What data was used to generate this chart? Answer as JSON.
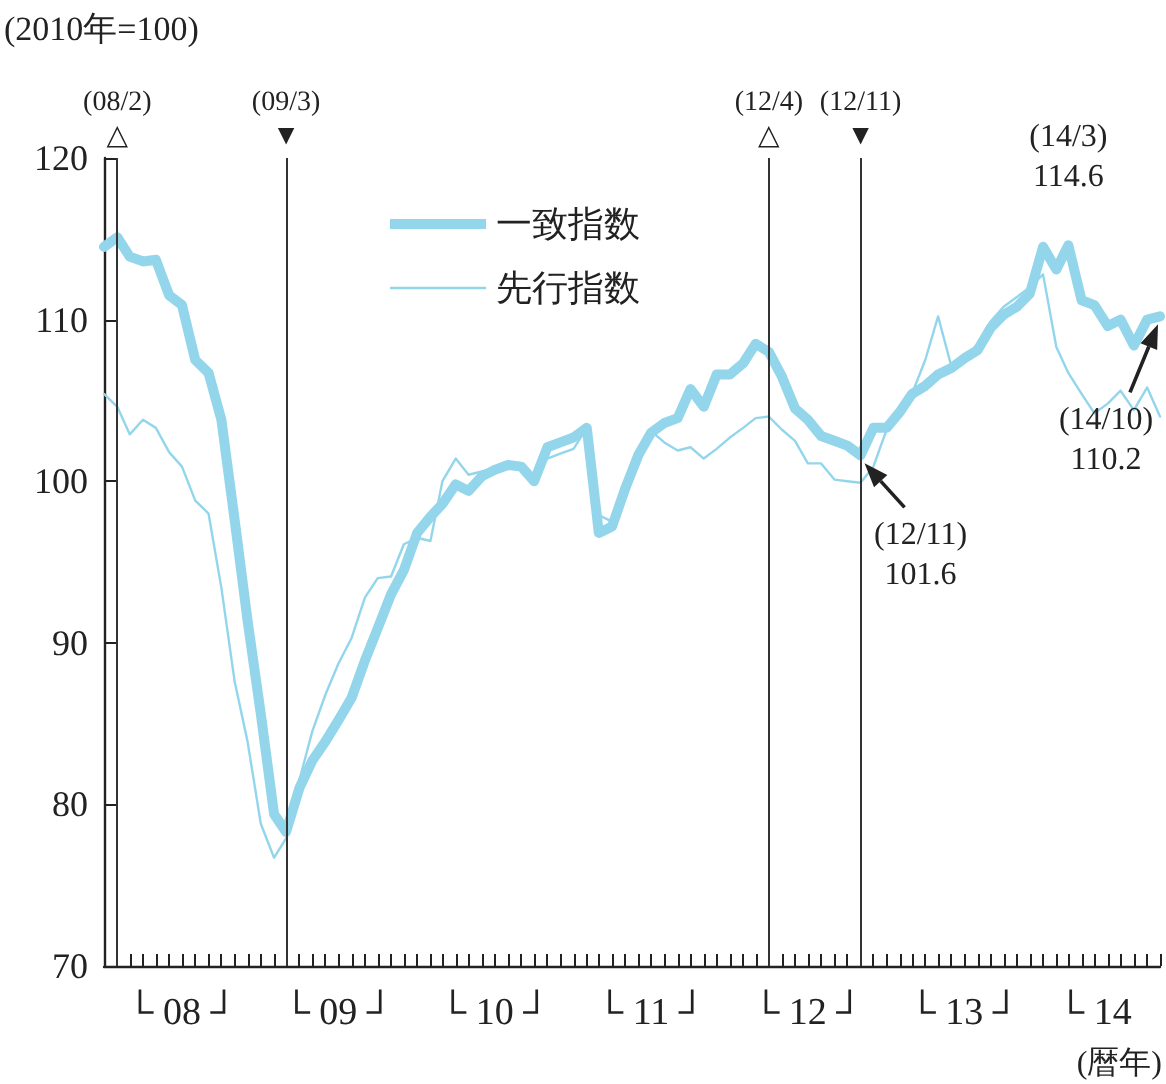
{
  "chart_data": {
    "type": "line",
    "ylabel": "(2010年=100)",
    "xlabel": "(暦年)",
    "x": [
      "2008-01",
      "2008-02",
      "2008-03",
      "2008-04",
      "2008-05",
      "2008-06",
      "2008-07",
      "2008-08",
      "2008-09",
      "2008-10",
      "2008-11",
      "2008-12",
      "2009-01",
      "2009-02",
      "2009-03",
      "2009-04",
      "2009-05",
      "2009-06",
      "2009-07",
      "2009-08",
      "2009-09",
      "2009-10",
      "2009-11",
      "2009-12",
      "2010-01",
      "2010-02",
      "2010-03",
      "2010-04",
      "2010-05",
      "2010-06",
      "2010-07",
      "2010-08",
      "2010-09",
      "2010-10",
      "2010-11",
      "2010-12",
      "2011-01",
      "2011-02",
      "2011-03",
      "2011-04",
      "2011-05",
      "2011-06",
      "2011-07",
      "2011-08",
      "2011-09",
      "2011-10",
      "2011-11",
      "2011-12",
      "2012-01",
      "2012-02",
      "2012-03",
      "2012-04",
      "2012-05",
      "2012-06",
      "2012-07",
      "2012-08",
      "2012-09",
      "2012-10",
      "2012-11",
      "2012-12",
      "2013-01",
      "2013-02",
      "2013-03",
      "2013-04",
      "2013-05",
      "2013-06",
      "2013-07",
      "2013-08",
      "2013-09",
      "2013-10",
      "2013-11",
      "2013-12",
      "2014-01",
      "2014-02",
      "2014-03",
      "2014-04",
      "2014-05",
      "2014-06",
      "2014-07",
      "2014-08",
      "2014-09",
      "2014-10"
    ],
    "series": [
      {
        "name": "一致指数",
        "color": "#93d6ec",
        "values": [
          114.5,
          115.1,
          113.9,
          113.6,
          113.7,
          111.5,
          110.9,
          107.5,
          106.7,
          103.8,
          97.6,
          91.4,
          85.6,
          79.4,
          78.3,
          81.0,
          82.7,
          83.9,
          85.2,
          86.6,
          88.9,
          90.9,
          93.0,
          94.5,
          96.8,
          97.8,
          98.6,
          99.8,
          99.4,
          100.3,
          100.7,
          101.0,
          100.9,
          100.0,
          102.1,
          102.4,
          102.7,
          103.3,
          96.8,
          97.2,
          99.5,
          101.6,
          103.0,
          103.6,
          103.9,
          105.7,
          104.6,
          106.6,
          106.6,
          107.3,
          108.5,
          108.0,
          106.5,
          104.5,
          103.8,
          102.8,
          102.5,
          102.2,
          101.6,
          103.3,
          103.3,
          104.3,
          105.4,
          105.9,
          106.6,
          107.0,
          107.6,
          108.1,
          109.5,
          110.3,
          110.8,
          111.6,
          114.5,
          113.1,
          114.6,
          111.2,
          110.9,
          109.6,
          110.0,
          108.4,
          110.0,
          110.2
        ]
      },
      {
        "name": "先行指数",
        "color": "#93d6ec",
        "values": [
          105.4,
          104.6,
          102.9,
          103.8,
          103.3,
          101.8,
          100.9,
          98.8,
          98.0,
          93.4,
          87.6,
          83.9,
          78.8,
          76.7,
          77.9,
          81.5,
          84.5,
          86.8,
          88.7,
          90.3,
          92.8,
          94.0,
          94.1,
          96.1,
          96.5,
          96.3,
          100.0,
          101.4,
          100.4,
          100.6,
          100.8,
          101.0,
          100.7,
          100.4,
          101.4,
          101.7,
          102.0,
          103.3,
          97.9,
          97.5,
          99.3,
          101.0,
          103.1,
          102.4,
          101.9,
          102.1,
          101.4,
          102.0,
          102.7,
          103.3,
          103.9,
          104.0,
          103.2,
          102.5,
          101.1,
          101.1,
          100.1,
          100.0,
          99.9,
          100.9,
          103.2,
          104.3,
          105.4,
          107.5,
          110.2,
          107.1,
          107.5,
          108.5,
          109.9,
          110.8,
          111.4,
          112.0,
          112.8,
          108.3,
          106.7,
          105.4,
          104.2,
          104.8,
          105.6,
          104.4,
          105.8,
          104.0
        ]
      }
    ],
    "xlim": [
      "2008-01",
      "2014-10"
    ],
    "xticks": [
      {
        "value": "2008-01",
        "label": null
      },
      {
        "value": "2008-02",
        "label": null
      },
      {
        "value": "2008-03",
        "label": null
      },
      {
        "value": "2008-04",
        "label": null
      },
      {
        "value": "2008-05",
        "label": null
      },
      {
        "value": "2008-06",
        "label": null
      },
      {
        "value": "2008-07",
        "label": "└ 08 ┘"
      },
      {
        "value": "2008-08",
        "label": null
      },
      {
        "value": "2008-09",
        "label": null
      },
      {
        "value": "2008-10",
        "label": null
      },
      {
        "value": "2008-11",
        "label": null
      },
      {
        "value": "2008-12",
        "label": null
      },
      {
        "value": "2009-01",
        "label": null
      },
      {
        "value": "2009-02",
        "label": null
      },
      {
        "value": "2009-03",
        "label": null
      },
      {
        "value": "2009-04",
        "label": null
      },
      {
        "value": "2009-05",
        "label": null
      },
      {
        "value": "2009-06",
        "label": null
      },
      {
        "value": "2009-07",
        "label": "└ 09 ┘"
      },
      {
        "value": "2009-08",
        "label": null
      },
      {
        "value": "2009-09",
        "label": null
      },
      {
        "value": "2009-10",
        "label": null
      },
      {
        "value": "2009-11",
        "label": null
      },
      {
        "value": "2009-12",
        "label": null
      },
      {
        "value": "2010-01",
        "label": null
      },
      {
        "value": "2010-02",
        "label": null
      },
      {
        "value": "2010-03",
        "label": null
      },
      {
        "value": "2010-04",
        "label": null
      },
      {
        "value": "2010-05",
        "label": null
      },
      {
        "value": "2010-06",
        "label": null
      },
      {
        "value": "2010-07",
        "label": "└ 10 ┘"
      },
      {
        "value": "2010-08",
        "label": null
      },
      {
        "value": "2010-09",
        "label": null
      },
      {
        "value": "2010-10",
        "label": null
      },
      {
        "value": "2010-11",
        "label": null
      },
      {
        "value": "2010-12",
        "label": null
      },
      {
        "value": "2011-01",
        "label": null
      },
      {
        "value": "2011-02",
        "label": null
      },
      {
        "value": "2011-03",
        "label": null
      },
      {
        "value": "2011-04",
        "label": null
      },
      {
        "value": "2011-05",
        "label": null
      },
      {
        "value": "2011-06",
        "label": null
      },
      {
        "value": "2011-07",
        "label": "└ 11 ┘"
      },
      {
        "value": "2011-08",
        "label": null
      },
      {
        "value": "2011-09",
        "label": null
      },
      {
        "value": "2011-10",
        "label": null
      },
      {
        "value": "2011-11",
        "label": null
      },
      {
        "value": "2011-12",
        "label": null
      },
      {
        "value": "2012-01",
        "label": null
      },
      {
        "value": "2012-02",
        "label": null
      },
      {
        "value": "2012-03",
        "label": null
      },
      {
        "value": "2012-04",
        "label": null
      },
      {
        "value": "2012-05",
        "label": null
      },
      {
        "value": "2012-06",
        "label": null
      },
      {
        "value": "2012-07",
        "label": "└ 12 ┘"
      },
      {
        "value": "2012-08",
        "label": null
      },
      {
        "value": "2012-09",
        "label": null
      },
      {
        "value": "2012-10",
        "label": null
      },
      {
        "value": "2012-11",
        "label": null
      },
      {
        "value": "2012-12",
        "label": null
      },
      {
        "value": "2013-01",
        "label": null
      },
      {
        "value": "2013-02",
        "label": null
      },
      {
        "value": "2013-03",
        "label": null
      },
      {
        "value": "2013-04",
        "label": null
      },
      {
        "value": "2013-05",
        "label": null
      },
      {
        "value": "2013-06",
        "label": null
      },
      {
        "value": "2013-07",
        "label": "└ 13 ┘"
      },
      {
        "value": "2013-08",
        "label": null
      },
      {
        "value": "2013-09",
        "label": null
      },
      {
        "value": "2013-10",
        "label": null
      },
      {
        "value": "2013-11",
        "label": null
      },
      {
        "value": "2013-12",
        "label": null
      },
      {
        "value": "2014-01",
        "label": null
      },
      {
        "value": "2014-02",
        "label": null
      },
      {
        "value": "2014-03",
        "label": null
      },
      {
        "value": "2014-04",
        "label": null
      },
      {
        "value": "2014-05",
        "label": "└ 14"
      },
      {
        "value": "2014-06",
        "label": null
      },
      {
        "value": "2014-07",
        "label": null
      },
      {
        "value": "2014-08",
        "label": null
      },
      {
        "value": "2014-09",
        "label": null
      },
      {
        "value": "2014-10",
        "label": null
      }
    ],
    "ylim": [
      70,
      120
    ],
    "yticks": [
      70,
      80,
      90,
      100,
      110,
      120
    ],
    "grid": false,
    "legend": "top",
    "marker": "none",
    "line_style": "solid",
    "ref_lines": [
      {
        "axis": "x",
        "value": "2008-02",
        "label": "(08/2)\n△"
      },
      {
        "axis": "x",
        "value": "2009-03",
        "label": "(09/3)\n▼"
      },
      {
        "axis": "x",
        "value": "2012-04",
        "label": "(12/4)\n△"
      },
      {
        "axis": "x",
        "value": "2012-11",
        "label": "(12/11)\n▼"
      }
    ],
    "annotations": [
      {
        "text": "(12/11)\n101.6",
        "x": "2012-11",
        "y": 101.6
      },
      {
        "text": "(14/3)\n114.6",
        "x": "2014-03",
        "y": 114.6
      },
      {
        "text": "(14/10)\n110.2",
        "x": "2014-10",
        "y": 110.2
      }
    ]
  }
}
